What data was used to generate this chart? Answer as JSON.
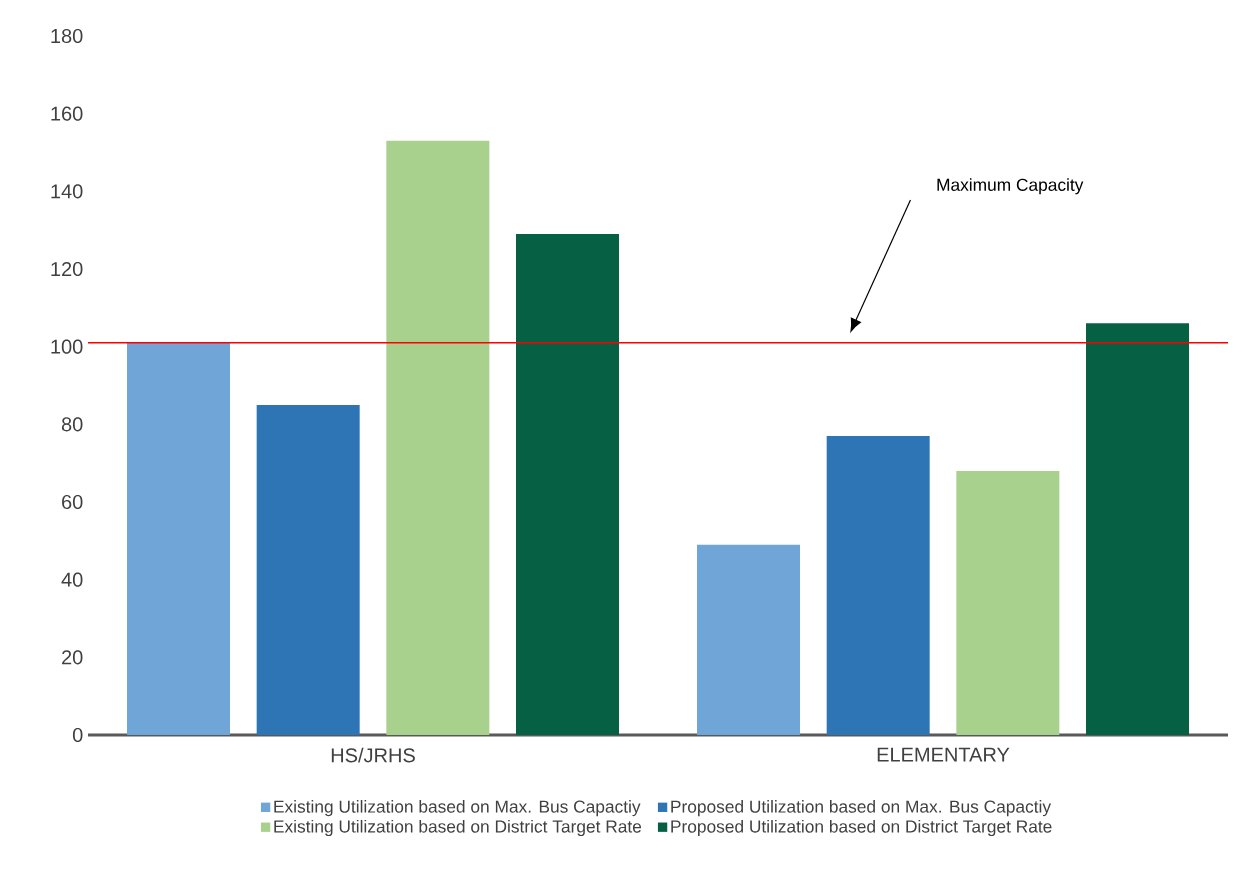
{
  "chart_data": {
    "type": "bar",
    "categories": [
      "HS/JRHS",
      "ELEMENTARY"
    ],
    "series": [
      {
        "name": "Existing Utilization based on Max. Bus Capactiy",
        "color": "#70a5d8",
        "values": [
          101,
          49
        ]
      },
      {
        "name": "Proposed Utilization based on Max. Bus Capactiy",
        "color": "#2e75b6",
        "values": [
          85,
          77
        ]
      },
      {
        "name": "Existing Utilization based on District Target Rate",
        "color": "#a9d18e",
        "values": [
          153,
          68
        ]
      },
      {
        "name": "Proposed Utilization based on District Target Rate",
        "color": "#066044",
        "values": [
          129,
          106
        ]
      }
    ],
    "ylim": [
      0,
      180
    ],
    "yticks": [
      0,
      20,
      40,
      60,
      80,
      100,
      120,
      140,
      160,
      180
    ],
    "ref_lines": [
      {
        "axis": "y",
        "value": 101,
        "color": "#ff0000"
      }
    ],
    "annotations": [
      "Maximum Capacity"
    ],
    "legend": "bottom"
  }
}
